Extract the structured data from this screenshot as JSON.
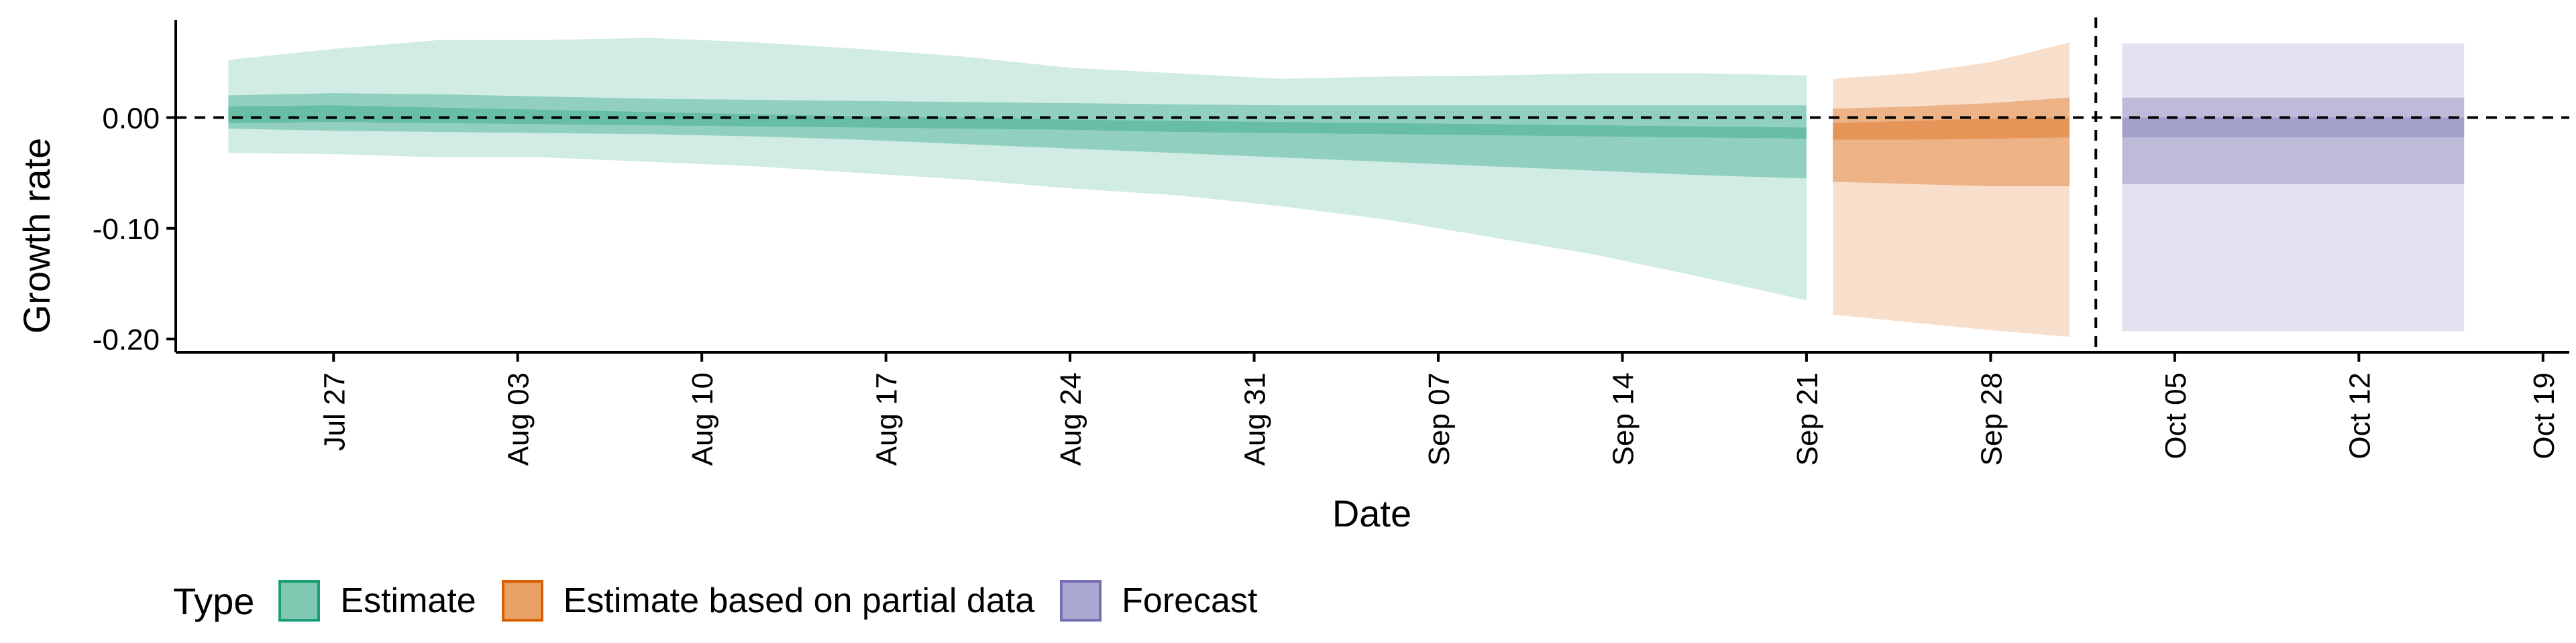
{
  "chart_data": {
    "type": "area",
    "xlabel": "Date",
    "ylabel": "Growth rate",
    "xlim": [
      "2020-07-21",
      "2020-10-20"
    ],
    "ylim": [
      -0.212,
      0.088
    ],
    "x_ticks": [
      "2020-07-27",
      "2020-08-03",
      "2020-08-10",
      "2020-08-17",
      "2020-08-24",
      "2020-08-31",
      "2020-09-07",
      "2020-09-14",
      "2020-09-21",
      "2020-09-28",
      "2020-10-05",
      "2020-10-12",
      "2020-10-19"
    ],
    "x_tick_labels": [
      "Jul 27",
      "Aug 03",
      "Aug 10",
      "Aug 17",
      "Aug 24",
      "Aug 31",
      "Sep 07",
      "Sep 14",
      "Sep 21",
      "Sep 28",
      "Oct 05",
      "Oct 12",
      "Oct 19"
    ],
    "y_ticks": [
      0.0,
      -0.1,
      -0.2
    ],
    "y_tick_labels": [
      "0.00",
      "-0.10",
      "-0.20"
    ],
    "reference_line_y": 0.0,
    "forecast_start_line_x": "2020-10-02",
    "grid": false,
    "legend": {
      "title": "Type",
      "position": "bottom-left",
      "entries": [
        "Estimate",
        "Estimate based on partial data",
        "Forecast"
      ]
    },
    "series": [
      {
        "name": "Estimate",
        "color": "#1b9e77",
        "x": [
          "2020-07-23",
          "2020-07-27",
          "2020-07-31",
          "2020-08-04",
          "2020-08-08",
          "2020-08-12",
          "2020-08-16",
          "2020-08-20",
          "2020-08-24",
          "2020-08-28",
          "2020-09-01",
          "2020-09-05",
          "2020-09-09",
          "2020-09-13",
          "2020-09-17",
          "2020-09-21"
        ],
        "upper90": [
          0.052,
          0.062,
          0.07,
          0.07,
          0.072,
          0.068,
          0.062,
          0.055,
          0.045,
          0.04,
          0.035,
          0.037,
          0.038,
          0.04,
          0.04,
          0.038
        ],
        "upper50": [
          0.02,
          0.022,
          0.021,
          0.019,
          0.017,
          0.016,
          0.015,
          0.014,
          0.013,
          0.012,
          0.011,
          0.011,
          0.011,
          0.011,
          0.011,
          0.011
        ],
        "upper20": [
          0.01,
          0.011,
          0.009,
          0.007,
          0.005,
          0.003,
          0.001,
          0.0,
          -0.002,
          -0.003,
          -0.004,
          -0.005,
          -0.006,
          -0.007,
          -0.008,
          -0.009
        ],
        "lower20": [
          -0.005,
          -0.004,
          -0.005,
          -0.006,
          -0.007,
          -0.008,
          -0.009,
          -0.01,
          -0.011,
          -0.013,
          -0.014,
          -0.015,
          -0.016,
          -0.017,
          -0.018,
          -0.019
        ],
        "lower50": [
          -0.01,
          -0.012,
          -0.013,
          -0.014,
          -0.015,
          -0.017,
          -0.02,
          -0.024,
          -0.028,
          -0.032,
          -0.036,
          -0.04,
          -0.044,
          -0.048,
          -0.052,
          -0.055
        ],
        "lower90": [
          -0.032,
          -0.033,
          -0.036,
          -0.036,
          -0.04,
          -0.044,
          -0.05,
          -0.056,
          -0.064,
          -0.07,
          -0.08,
          -0.092,
          -0.108,
          -0.124,
          -0.144,
          -0.165
        ]
      },
      {
        "name": "Estimate based on partial data",
        "color": "#d95f02",
        "x": [
          "2020-09-22",
          "2020-09-25",
          "2020-09-28",
          "2020-10-01"
        ],
        "upper90": [
          0.035,
          0.04,
          0.05,
          0.068
        ],
        "upper50": [
          0.008,
          0.01,
          0.013,
          0.018
        ],
        "upper20": [
          -0.005,
          -0.003,
          -0.001,
          0.0
        ],
        "lower20": [
          -0.02,
          -0.02,
          -0.019,
          -0.018
        ],
        "lower50": [
          -0.058,
          -0.06,
          -0.062,
          -0.062
        ],
        "lower90": [
          -0.178,
          -0.185,
          -0.192,
          -0.198
        ]
      },
      {
        "name": "Forecast",
        "color": "#7570b3",
        "x": [
          "2020-10-03",
          "2020-10-16"
        ],
        "upper90": [
          0.067,
          0.067
        ],
        "upper50": [
          0.018,
          0.018
        ],
        "upper20": [
          0.0,
          0.0
        ],
        "lower20": [
          -0.018,
          -0.018
        ],
        "lower50": [
          -0.06,
          -0.06
        ],
        "lower90": [
          -0.193,
          -0.193
        ]
      }
    ]
  }
}
